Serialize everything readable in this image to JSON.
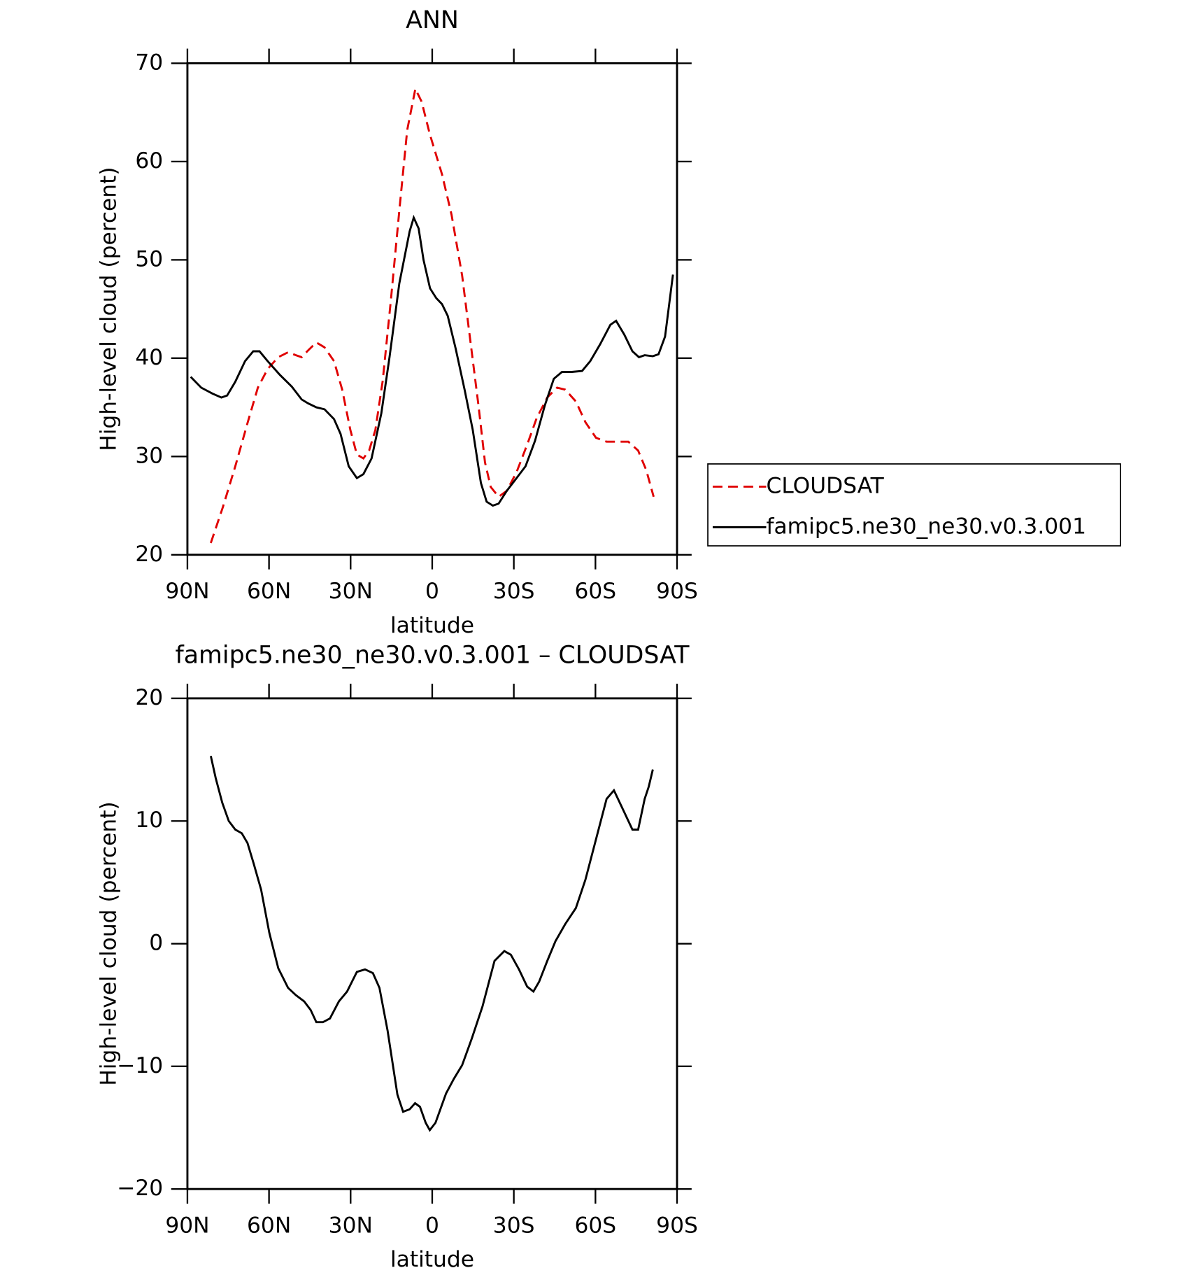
{
  "chart_data": [
    {
      "type": "line",
      "title": "ANN",
      "xlabel": "latitude",
      "ylabel": "High-level cloud (percent)",
      "xlim": [
        90,
        -90
      ],
      "xticks": [
        {
          "value": 90,
          "label": "90N"
        },
        {
          "value": 60,
          "label": "60N"
        },
        {
          "value": 30,
          "label": "30N"
        },
        0,
        {
          "value": -30,
          "label": "30S"
        },
        {
          "value": -60,
          "label": "60S"
        },
        {
          "value": -90,
          "label": "90S"
        }
      ],
      "ylim": [
        20,
        70
      ],
      "yticks": [
        20,
        30,
        40,
        50,
        60,
        70
      ],
      "legend_position": "right",
      "series": [
        {
          "name": "CLOUDSAT",
          "color": "#e00000",
          "dash": true,
          "x": [
            81.4,
            76.9,
            72.4,
            67.9,
            64.1,
            60.5,
            56.6,
            53.0,
            50.1,
            48.0,
            45.6,
            42.6,
            39.6,
            36.1,
            33.1,
            30.1,
            27.7,
            25.3,
            23.2,
            20.9,
            18.2,
            15.2,
            12.1,
            9.2,
            6.2,
            3.9,
            0.9,
            -3.6,
            -7.1,
            -11.0,
            -14.0,
            -17.0,
            -19.4,
            -21.5,
            -24.4,
            -27.4,
            -31.0,
            -34.9,
            -38.4,
            -42.3,
            -45.9,
            -48.9,
            -52.8,
            -56.3,
            -60.2,
            -64.1,
            -67.6,
            -72.1,
            -75.7,
            -78.7,
            -81.4
          ],
          "values": [
            21.2,
            24.9,
            29.0,
            33.4,
            37.0,
            38.9,
            40.1,
            40.6,
            40.3,
            40.1,
            40.8,
            41.6,
            41.1,
            39.7,
            36.8,
            32.7,
            30.2,
            29.8,
            30.6,
            32.7,
            37.7,
            45.9,
            55.0,
            63.2,
            67.4,
            66.1,
            62.8,
            58.7,
            54.6,
            48.4,
            41.8,
            35.2,
            29.4,
            26.9,
            25.9,
            26.5,
            28.4,
            31.2,
            33.9,
            36.0,
            37.0,
            36.8,
            35.6,
            33.5,
            31.9,
            31.5,
            31.5,
            31.5,
            30.6,
            28.6,
            25.9
          ]
        },
        {
          "name": "famipc5.ne30_ne30.v0.3.001",
          "color": "#000000",
          "dash": false,
          "x": [
            88.8,
            84.9,
            80.8,
            77.5,
            75.4,
            72.4,
            68.8,
            65.8,
            63.5,
            60.5,
            56.0,
            51.6,
            48.0,
            45.6,
            42.6,
            39.6,
            36.1,
            33.7,
            30.7,
            27.7,
            25.3,
            22.3,
            18.7,
            15.7,
            12.1,
            8.3,
            6.8,
            5.0,
            3.2,
            0.8,
            -1.5,
            -3.6,
            -5.7,
            -8.6,
            -11.9,
            -14.9,
            -17.9,
            -20.0,
            -22.3,
            -24.4,
            -27.4,
            -31.0,
            -34.3,
            -37.8,
            -41.4,
            -44.7,
            -47.7,
            -51.3,
            -55.1,
            -58.1,
            -61.7,
            -65.5,
            -67.6,
            -70.6,
            -73.6,
            -76.0,
            -78.1,
            -81.1,
            -83.2,
            -85.6,
            -88.5
          ],
          "values": [
            38.1,
            37.0,
            36.4,
            36.0,
            36.2,
            37.6,
            39.7,
            40.7,
            40.7,
            39.7,
            38.3,
            37.1,
            35.8,
            35.4,
            35.0,
            34.8,
            33.8,
            32.3,
            29.0,
            27.8,
            28.2,
            29.8,
            34.4,
            40.1,
            47.6,
            52.9,
            54.3,
            53.2,
            50.0,
            47.1,
            46.1,
            45.5,
            44.3,
            41.0,
            36.8,
            32.7,
            27.3,
            25.4,
            25.0,
            25.2,
            26.5,
            27.8,
            29.0,
            31.6,
            35.2,
            37.9,
            38.6,
            38.6,
            38.7,
            39.7,
            41.4,
            43.4,
            43.8,
            42.4,
            40.7,
            40.1,
            40.3,
            40.2,
            40.4,
            42.2,
            48.5
          ]
        }
      ]
    },
    {
      "type": "line",
      "title": "famipc5.ne30_ne30.v0.3.001 – CLOUDSAT",
      "xlabel": "latitude",
      "ylabel": "High-level cloud (percent)",
      "xlim": [
        90,
        -90
      ],
      "xticks": [
        {
          "value": 90,
          "label": "90N"
        },
        {
          "value": 60,
          "label": "60N"
        },
        {
          "value": 30,
          "label": "30N"
        },
        0,
        {
          "value": -30,
          "label": "30S"
        },
        {
          "value": -60,
          "label": "60S"
        },
        {
          "value": -90,
          "label": "90S"
        }
      ],
      "ylim": [
        -20,
        20
      ],
      "yticks": [
        {
          "value": -20,
          "label": "−20"
        },
        {
          "value": -10,
          "label": "−10"
        },
        0,
        10,
        20
      ],
      "series": [
        {
          "color": "#000000",
          "dash": false,
          "x": [
            81.4,
            79.6,
            77.2,
            74.8,
            72.4,
            70.0,
            67.9,
            65.6,
            62.9,
            59.9,
            56.6,
            53.0,
            50.1,
            47.1,
            44.7,
            42.6,
            40.2,
            37.6,
            34.3,
            31.3,
            27.7,
            24.7,
            21.8,
            19.4,
            16.4,
            12.8,
            10.7,
            8.3,
            6.3,
            4.5,
            2.4,
            0.9,
            -1.2,
            -5.1,
            -8.0,
            -11.0,
            -14.6,
            -18.5,
            -22.9,
            -26.5,
            -28.9,
            -31.9,
            -34.9,
            -37.2,
            -39.3,
            -42.3,
            -45.3,
            -48.9,
            -52.8,
            -56.3,
            -60.2,
            -64.1,
            -66.8,
            -70.0,
            -73.6,
            -75.7,
            -78.1,
            -79.6,
            -81.1
          ],
          "values": [
            15.3,
            13.5,
            11.5,
            10.0,
            9.3,
            9.0,
            8.2,
            6.5,
            4.4,
            0.9,
            -2.0,
            -3.6,
            -4.2,
            -4.7,
            -5.4,
            -6.4,
            -6.4,
            -6.1,
            -4.7,
            -3.9,
            -2.3,
            -2.1,
            -2.4,
            -3.6,
            -7.1,
            -12.3,
            -13.7,
            -13.5,
            -13.0,
            -13.3,
            -14.6,
            -15.2,
            -14.6,
            -12.2,
            -11.0,
            -9.9,
            -7.7,
            -5.1,
            -1.4,
            -0.6,
            -0.9,
            -2.1,
            -3.5,
            -3.9,
            -3.1,
            -1.4,
            0.2,
            1.6,
            2.9,
            5.2,
            8.5,
            11.8,
            12.5,
            11.0,
            9.3,
            9.3,
            11.8,
            12.8,
            14.2
          ]
        }
      ]
    }
  ]
}
